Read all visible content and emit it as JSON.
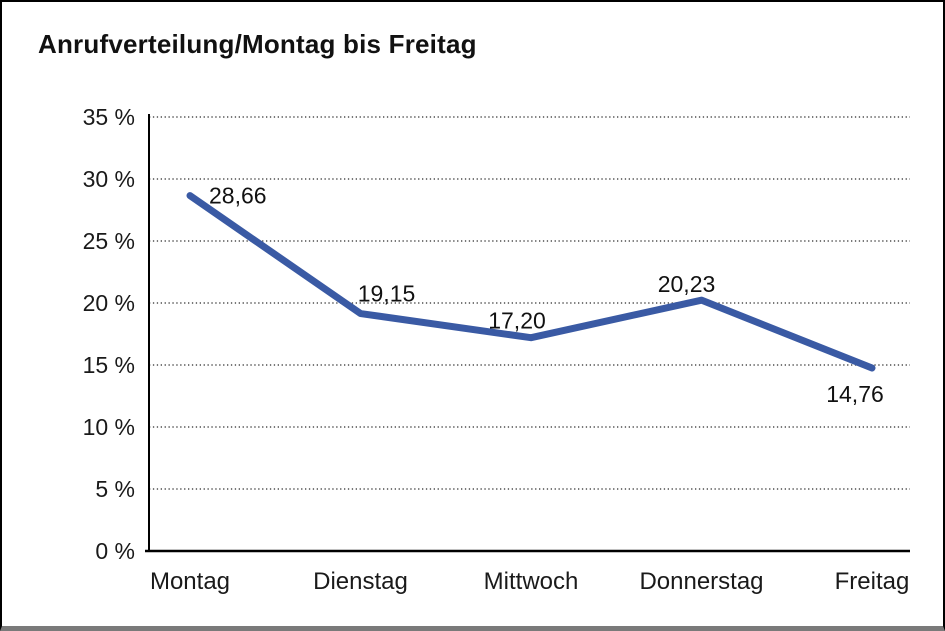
{
  "window": {
    "background": "#ffffff",
    "frame_border_color": "#000000",
    "frame_bottom_edge_color": "#7a7a7a"
  },
  "chart_data": {
    "type": "line",
    "title": "Anrufverteilung/Montag bis Freitag",
    "categories": [
      "Montag",
      "Dienstag",
      "Mittwoch",
      "Donnerstag",
      "Freitag"
    ],
    "series": [
      {
        "values": [
          28.66,
          19.15,
          17.2,
          20.23,
          14.76
        ],
        "point_labels": [
          "28,66",
          "19,15",
          "17,20",
          "20,23",
          "14,76"
        ],
        "color": "#3A5AA4",
        "stroke_width": 7
      }
    ],
    "xlabel": "",
    "ylabel": "",
    "ylim": [
      0,
      35
    ],
    "y_tick_step": 5,
    "y_tick_labels": [
      "0 %",
      "5 %",
      "10 %",
      "15 %",
      "20 %",
      "25 %",
      "30 %",
      "35 %"
    ],
    "grid": {
      "horizontal": "dotted",
      "vertical": "off",
      "color": "#4d4d4d"
    },
    "legend": "none",
    "axis_color": "#000000",
    "tick_label_color": "#1a1a1a",
    "data_label_color": "#111111"
  }
}
